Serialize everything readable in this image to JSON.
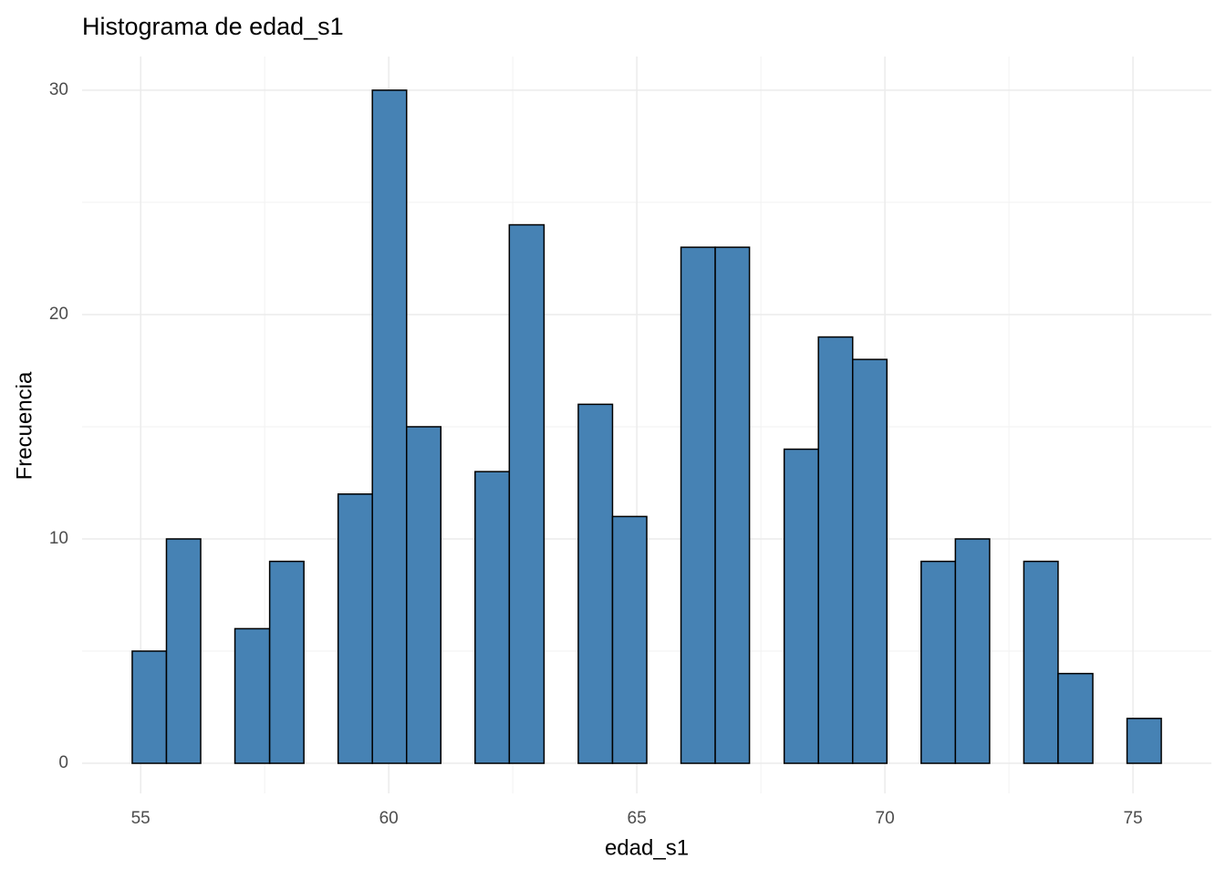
{
  "chart_data": {
    "type": "histogram",
    "title": "Histograma de edad_s1",
    "x_label": "edad_s1",
    "y_label": "Frecuencia",
    "bins": [
      54.83,
      55.52,
      56.21,
      56.9,
      57.6,
      58.29,
      58.98,
      59.67,
      60.36,
      61.05,
      61.74,
      62.43,
      63.13,
      63.82,
      64.51,
      65.2,
      65.89,
      66.58,
      67.27,
      67.97,
      68.66,
      69.35,
      70.04,
      70.73,
      71.42,
      72.11,
      72.8,
      73.49,
      74.19,
      74.88,
      75.57
    ],
    "values": [
      5,
      10,
      0,
      6,
      9,
      0,
      12,
      30,
      15,
      0,
      13,
      24,
      0,
      16,
      11,
      0,
      23,
      23,
      0,
      14,
      19,
      18,
      0,
      9,
      10,
      0,
      9,
      4,
      0,
      2
    ],
    "color": "#4682b4",
    "edge_color": "#000000",
    "xlim": [
      53.82,
      76.58
    ],
    "ylim": [
      -1.34,
      31.5
    ],
    "xticks": [
      55,
      60,
      65,
      70,
      75
    ],
    "yticks": [
      0,
      10,
      20,
      30
    ],
    "xminor": [
      57.5,
      62.5,
      67.5,
      72.5
    ],
    "yminor": [
      5,
      15,
      25
    ],
    "grid": true
  }
}
